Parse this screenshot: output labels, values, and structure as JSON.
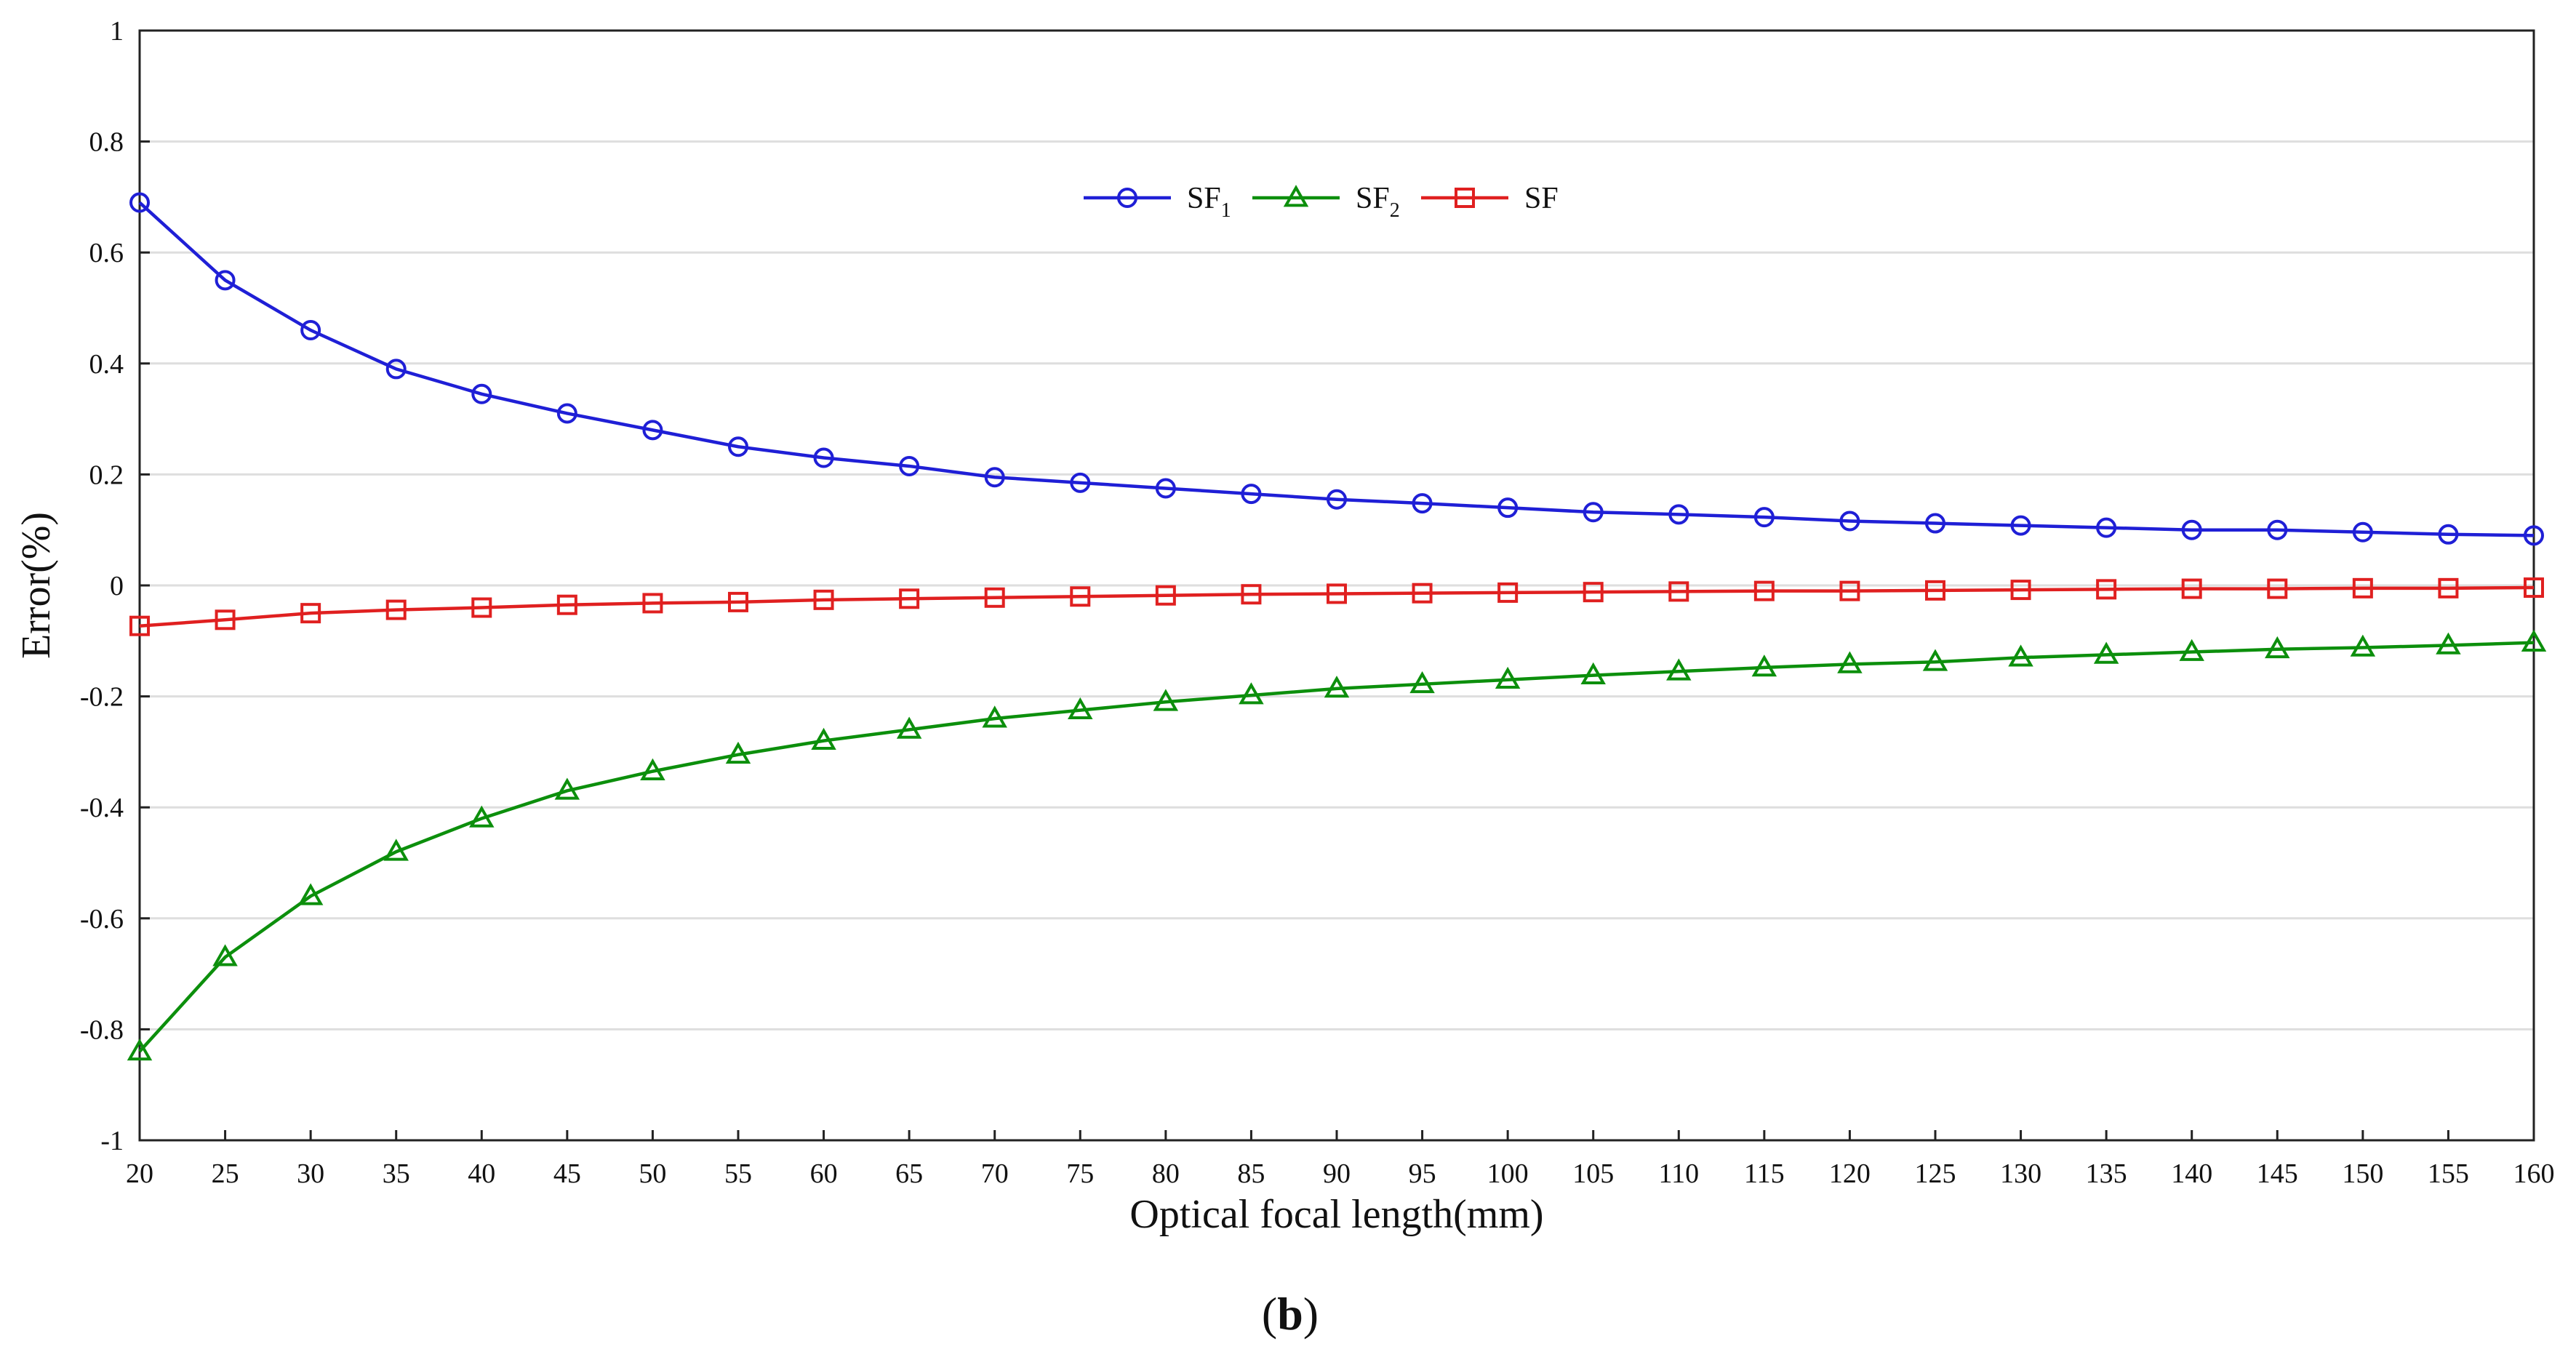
{
  "chart_data": {
    "type": "line",
    "title": "",
    "xlabel": "Optical focal length(mm)",
    "ylabel": "Error(%)",
    "xlim": [
      20,
      160
    ],
    "ylim": [
      -1,
      1
    ],
    "grid": true,
    "legend_position": "top-center",
    "x_ticks": [
      "20",
      "25",
      "30",
      "35",
      "40",
      "45",
      "50",
      "55",
      "60",
      "65",
      "70",
      "75",
      "80",
      "85",
      "90",
      "95",
      "100",
      "105",
      "110",
      "115",
      "120",
      "125",
      "130",
      "135",
      "140",
      "145",
      "150",
      "155",
      "160"
    ],
    "y_ticks": [
      "1",
      "0.8",
      "0.6",
      "0.4",
      "0.2",
      "0",
      "-0.2",
      "-0.4",
      "-0.6",
      "-0.8",
      "-1"
    ],
    "x": [
      20,
      25,
      30,
      35,
      40,
      45,
      50,
      55,
      60,
      65,
      70,
      75,
      80,
      85,
      90,
      95,
      100,
      105,
      110,
      115,
      120,
      125,
      130,
      135,
      140,
      145,
      150,
      155,
      160
    ],
    "series": [
      {
        "name": "SF",
        "name_sub": "1",
        "color": "#1f1fd6",
        "marker": "circle",
        "values": [
          0.69,
          0.55,
          0.46,
          0.39,
          0.345,
          0.31,
          0.28,
          0.25,
          0.23,
          0.215,
          0.195,
          0.185,
          0.175,
          0.165,
          0.155,
          0.148,
          0.14,
          0.132,
          0.128,
          0.123,
          0.116,
          0.112,
          0.108,
          0.104,
          0.1,
          0.1,
          0.096,
          0.092,
          0.09
        ]
      },
      {
        "name": "SF",
        "name_sub": "2",
        "color": "#0c8f0c",
        "marker": "triangle",
        "values": [
          -0.84,
          -0.67,
          -0.56,
          -0.48,
          -0.42,
          -0.37,
          -0.335,
          -0.305,
          -0.28,
          -0.26,
          -0.24,
          -0.225,
          -0.21,
          -0.198,
          -0.186,
          -0.178,
          -0.17,
          -0.162,
          -0.155,
          -0.148,
          -0.142,
          -0.138,
          -0.13,
          -0.125,
          -0.12,
          -0.115,
          -0.112,
          -0.108,
          -0.103
        ]
      },
      {
        "name": "SF",
        "name_sub": "",
        "color": "#e02020",
        "marker": "square",
        "values": [
          -0.073,
          -0.062,
          -0.05,
          -0.044,
          -0.04,
          -0.035,
          -0.032,
          -0.03,
          -0.026,
          -0.024,
          -0.022,
          -0.02,
          -0.018,
          -0.016,
          -0.015,
          -0.014,
          -0.013,
          -0.012,
          -0.011,
          -0.01,
          -0.01,
          -0.009,
          -0.008,
          -0.007,
          -0.006,
          -0.006,
          -0.005,
          -0.005,
          -0.004
        ]
      }
    ],
    "subfigure_label": "b",
    "subfigure_open": "(",
    "subfigure_close": ")"
  }
}
